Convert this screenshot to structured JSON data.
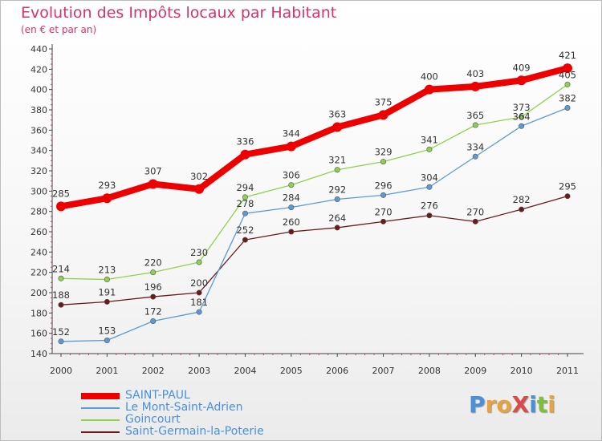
{
  "title": "Evolution des Impôts locaux par Habitant",
  "subtitle": "(en € et par an)",
  "logo": {
    "text": "ProXiti",
    "letter_colors": [
      "#4a90d9",
      "#e8a33d",
      "#e8a33d",
      "#d94a4a",
      "#4a90d9",
      "#7cbf3a",
      "#e8a33d"
    ]
  },
  "chart_data": {
    "type": "line",
    "x": [
      "2000",
      "2001",
      "2002",
      "2003",
      "2004",
      "2005",
      "2006",
      "2007",
      "2008",
      "2009",
      "2010",
      "2011"
    ],
    "ylim": [
      140,
      440
    ],
    "yticks": [
      140,
      160,
      180,
      200,
      220,
      240,
      260,
      280,
      300,
      320,
      340,
      360,
      380,
      400,
      420,
      440
    ],
    "grid": false,
    "legend_position": "bottom-left",
    "series": [
      {
        "name": "SAINT-PAUL",
        "color": "#ee0000",
        "values": [
          285,
          293,
          307,
          302,
          336,
          344,
          363,
          375,
          400,
          403,
          409,
          421
        ]
      },
      {
        "name": "Le Mont-Saint-Adrien",
        "color": "#5b9bd5",
        "values": [
          152,
          153,
          172,
          181,
          278,
          284,
          292,
          296,
          304,
          334,
          364,
          382
        ]
      },
      {
        "name": "Goincourt",
        "color": "#8fd14f",
        "values": [
          214,
          213,
          220,
          230,
          294,
          306,
          321,
          329,
          341,
          365,
          373,
          405
        ]
      },
      {
        "name": "Saint-Germain-la-Poterie",
        "color": "#6b1a1a",
        "values": [
          188,
          191,
          196,
          200,
          252,
          260,
          264,
          270,
          276,
          270,
          282,
          295
        ]
      }
    ]
  }
}
